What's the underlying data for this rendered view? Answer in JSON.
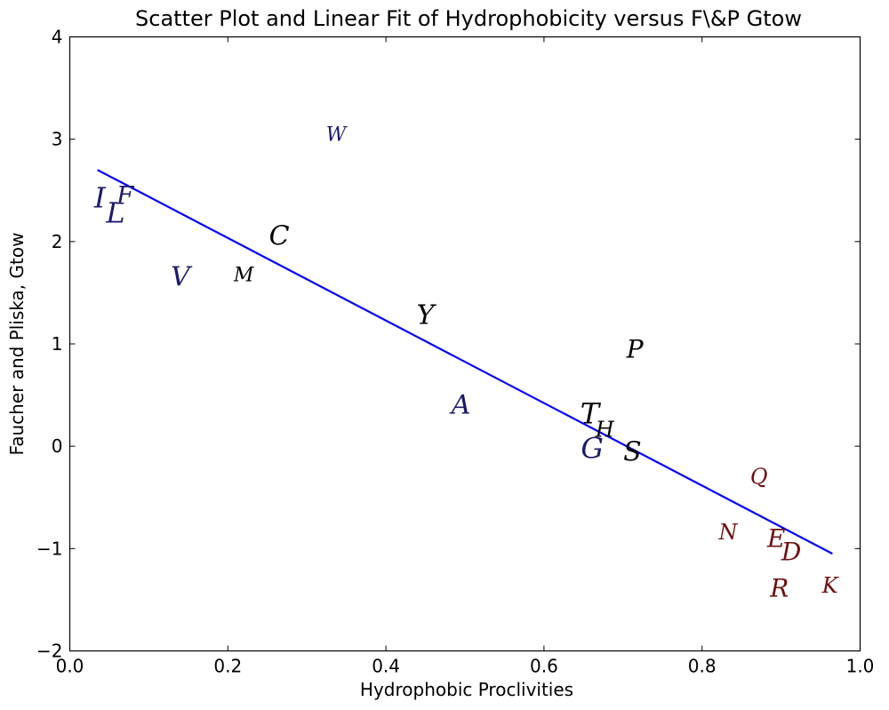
{
  "chart_data": {
    "type": "scatter",
    "title": "Scatter Plot and Linear Fit of Hydrophobicity versus F\\&P Gtow",
    "xlabel": "Hydrophobic Proclivities",
    "ylabel": "Faucher and Pliska, Gtow",
    "xlim": [
      0.0,
      1.0
    ],
    "ylim": [
      -2,
      4
    ],
    "xticks": [
      "0.0",
      "0.2",
      "0.4",
      "0.6",
      "0.8",
      "1.0"
    ],
    "yticks": [
      "−2",
      "−1",
      "0",
      "1",
      "2",
      "3",
      "4"
    ],
    "grid": false,
    "points": [
      {
        "label": "I",
        "x": 0.038,
        "y": 2.43,
        "color": "#1c1a6b",
        "size": 32
      },
      {
        "label": "F",
        "x": 0.07,
        "y": 2.45,
        "color": "#1c1a6b",
        "size": 28
      },
      {
        "label": "L",
        "x": 0.058,
        "y": 2.28,
        "color": "#1c1a6b",
        "size": 32
      },
      {
        "label": "W",
        "x": 0.337,
        "y": 3.04,
        "color": "#1c1a6b",
        "size": 22
      },
      {
        "label": "C",
        "x": 0.265,
        "y": 2.05,
        "color": "#000000",
        "size": 30
      },
      {
        "label": "V",
        "x": 0.14,
        "y": 1.65,
        "color": "#1c1a6b",
        "size": 30
      },
      {
        "label": "M",
        "x": 0.22,
        "y": 1.67,
        "color": "#000000",
        "size": 22
      },
      {
        "label": "Y",
        "x": 0.45,
        "y": 1.28,
        "color": "#000000",
        "size": 30
      },
      {
        "label": "P",
        "x": 0.715,
        "y": 0.95,
        "color": "#000000",
        "size": 28
      },
      {
        "label": "A",
        "x": 0.495,
        "y": 0.4,
        "color": "#1c1a6b",
        "size": 30
      },
      {
        "label": "T",
        "x": 0.658,
        "y": 0.32,
        "color": "#000000",
        "size": 32
      },
      {
        "label": "H",
        "x": 0.677,
        "y": 0.16,
        "color": "#000000",
        "size": 24
      },
      {
        "label": "G",
        "x": 0.661,
        "y": -0.02,
        "color": "#1c1a6b",
        "size": 32
      },
      {
        "label": "S",
        "x": 0.712,
        "y": -0.06,
        "color": "#000000",
        "size": 30
      },
      {
        "label": "Q",
        "x": 0.872,
        "y": -0.3,
        "color": "#6e1010",
        "size": 24
      },
      {
        "label": "N",
        "x": 0.833,
        "y": -0.84,
        "color": "#6e1010",
        "size": 24
      },
      {
        "label": "E",
        "x": 0.894,
        "y": -0.9,
        "color": "#6e1010",
        "size": 28
      },
      {
        "label": "D",
        "x": 0.913,
        "y": -1.03,
        "color": "#6e1010",
        "size": 28
      },
      {
        "label": "R",
        "x": 0.898,
        "y": -1.39,
        "color": "#6e1010",
        "size": 28
      },
      {
        "label": "K",
        "x": 0.962,
        "y": -1.36,
        "color": "#6e1010",
        "size": 24
      }
    ],
    "fit_line": {
      "x": [
        0.035,
        0.965
      ],
      "y": [
        2.7,
        -1.05
      ],
      "color": "#0000ff"
    }
  }
}
